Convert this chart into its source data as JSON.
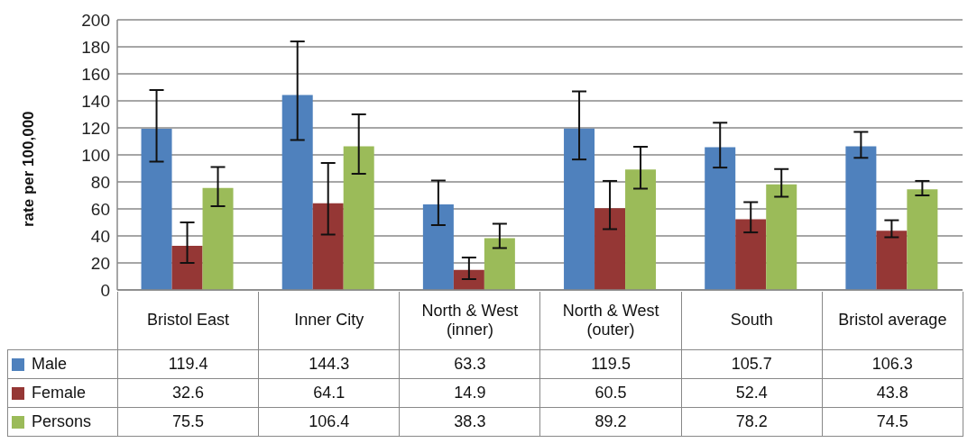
{
  "chart_data": {
    "type": "bar",
    "ylabel": "rate per 100,000",
    "categories": [
      "Bristol East",
      "Inner City",
      "North & West (inner)",
      "North & West (outer)",
      "South",
      "Bristol average"
    ],
    "series": [
      {
        "name": "Male",
        "color": "#4f81bd",
        "values": [
          119.4,
          144.3,
          63.3,
          119.5,
          105.7,
          106.3
        ],
        "errors": [
          [
            95,
            148
          ],
          [
            111,
            184
          ],
          [
            48,
            81
          ],
          [
            96.6,
            147
          ],
          [
            90.6,
            123.8
          ],
          [
            97.8,
            117
          ]
        ]
      },
      {
        "name": "Female",
        "color": "#953735",
        "values": [
          32.6,
          64.1,
          14.9,
          60.5,
          52.4,
          43.8
        ],
        "errors": [
          [
            20,
            50
          ],
          [
            41,
            94
          ],
          [
            8,
            24
          ],
          [
            45,
            80.7
          ],
          [
            42.6,
            65
          ],
          [
            39,
            51.6
          ]
        ]
      },
      {
        "name": "Persons",
        "color": "#9bbb59",
        "values": [
          75.5,
          106.4,
          38.3,
          89.2,
          78.2,
          74.5
        ],
        "errors": [
          [
            62,
            91
          ],
          [
            86,
            130
          ],
          [
            31,
            49
          ],
          [
            75,
            106
          ],
          [
            69,
            89.5
          ],
          [
            70,
            80.7
          ]
        ]
      }
    ],
    "ylim": [
      0,
      200
    ],
    "yticks": [
      0,
      20,
      40,
      60,
      80,
      100,
      120,
      140,
      160,
      180,
      200
    ],
    "grid": "y",
    "legend": "bottom",
    "data_labels": true
  }
}
